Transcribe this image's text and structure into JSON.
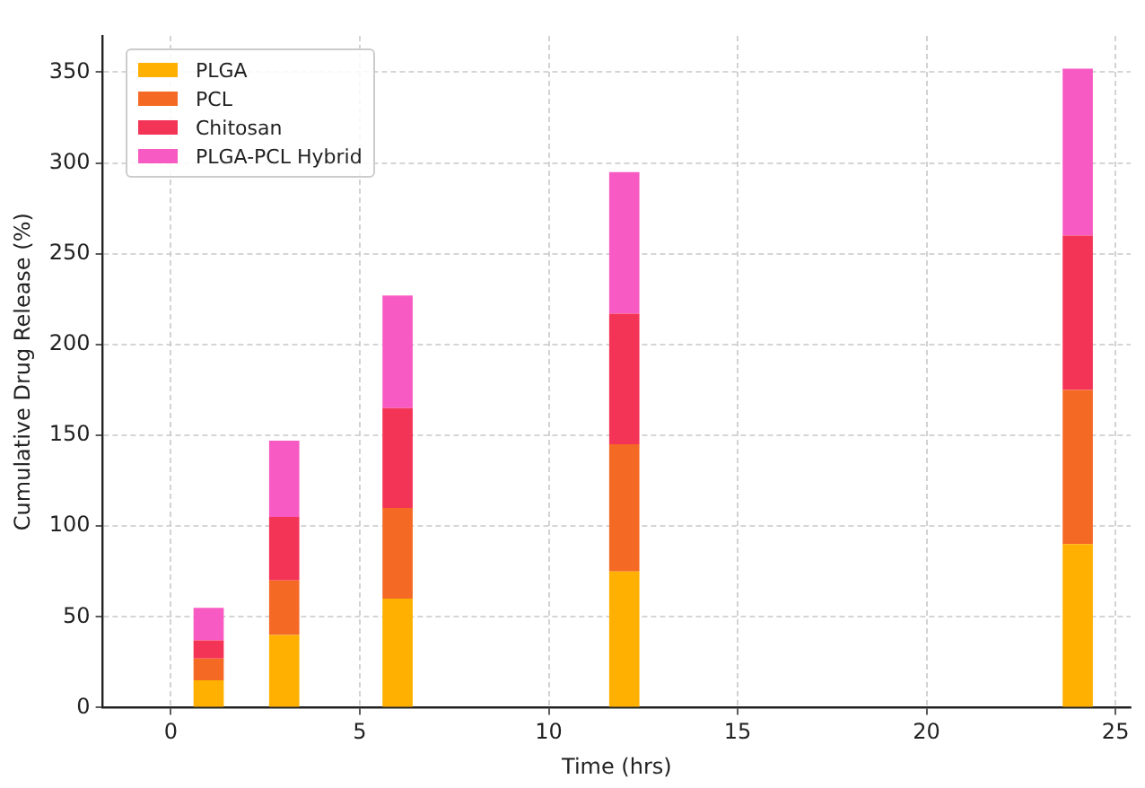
{
  "chart_data": {
    "type": "bar",
    "stacked": true,
    "xlabel": "Time (hrs)",
    "ylabel": "Cumulative Drug Release (%)",
    "x": [
      1,
      3,
      6,
      12,
      24
    ],
    "series": [
      {
        "name": "PLGA",
        "color": "#ffb000",
        "values": [
          15,
          40,
          60,
          75,
          90
        ]
      },
      {
        "name": "PCL",
        "color": "#f46a25",
        "values": [
          12,
          30,
          50,
          70,
          85
        ]
      },
      {
        "name": "Chitosan",
        "color": "#f43457",
        "values": [
          10,
          35,
          55,
          72,
          85
        ]
      },
      {
        "name": "PLGA-PCL Hybrid",
        "color": "#f75bc3",
        "values": [
          18,
          42,
          62,
          78,
          92
        ]
      }
    ],
    "xlim": [
      -1.8,
      25.4
    ],
    "xticks": [
      0,
      5,
      10,
      15,
      20,
      25
    ],
    "ylim": [
      0,
      370
    ],
    "yticks": [
      0,
      50,
      100,
      150,
      200,
      250,
      300,
      350
    ],
    "grid": true,
    "legend": "top left"
  }
}
